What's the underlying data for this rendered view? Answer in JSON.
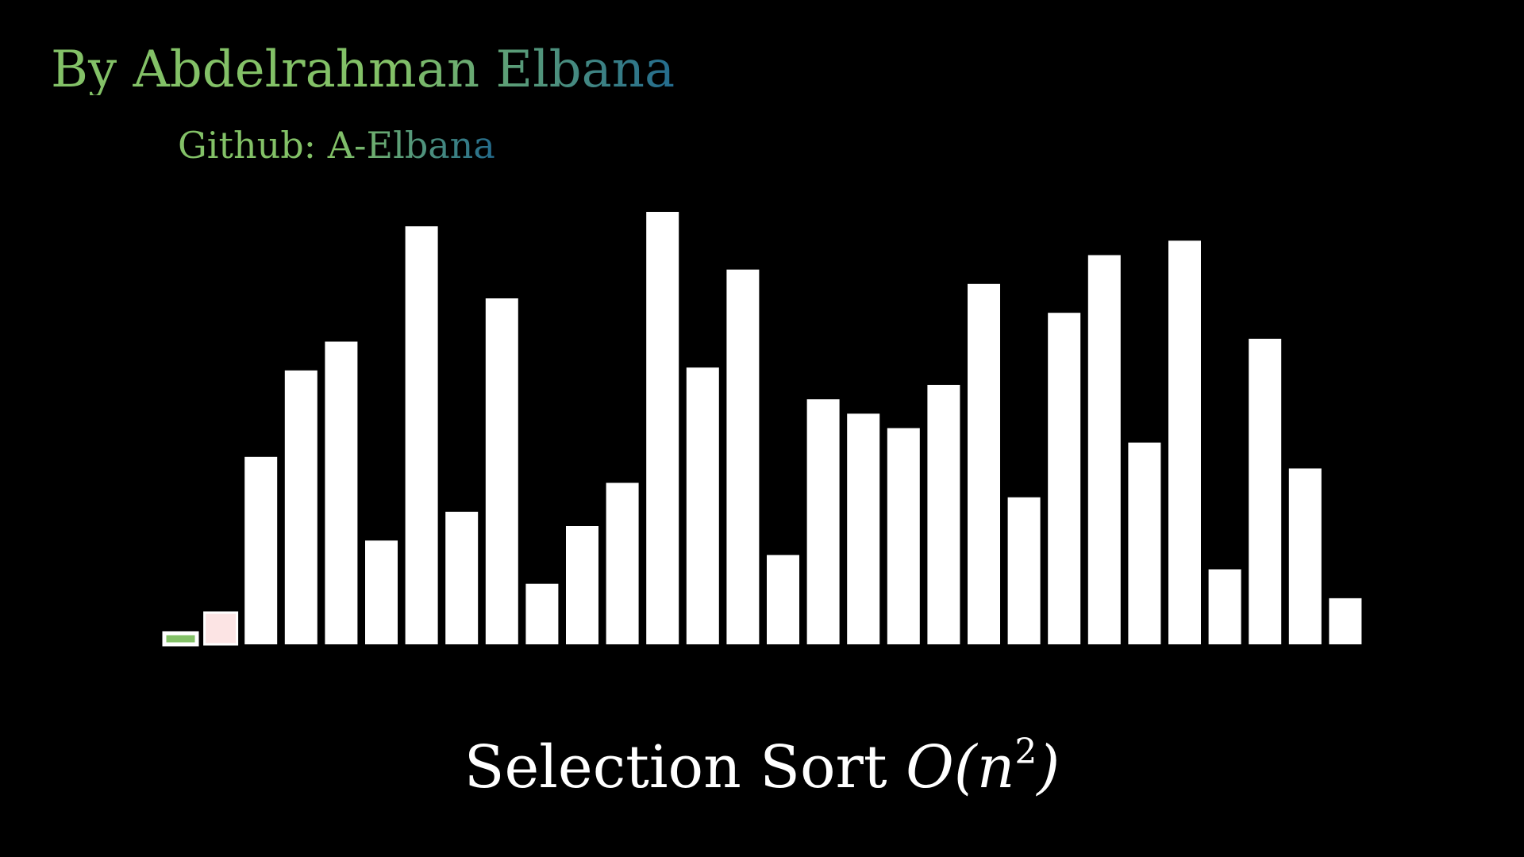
{
  "header": {
    "author": "By Abdelrahman Elbana",
    "github": "Github:  A-Elbana"
  },
  "footer": {
    "title_text": "Selection Sort",
    "complexity_open": "O(n",
    "complexity_exp": "2",
    "complexity_close": ")"
  },
  "chart_data": {
    "type": "bar",
    "values": [
      1,
      22,
      130,
      190,
      210,
      72,
      290,
      92,
      240,
      42,
      82,
      112,
      300,
      192,
      260,
      62,
      170,
      160,
      150,
      180,
      250,
      102,
      230,
      270,
      140,
      280,
      52,
      212,
      122,
      32
    ],
    "bar_styles": [
      "sorted",
      "current-min",
      "normal",
      "normal",
      "normal",
      "normal",
      "normal",
      "normal",
      "normal",
      "normal",
      "normal",
      "normal",
      "normal",
      "normal",
      "normal",
      "normal",
      "normal",
      "normal",
      "normal",
      "normal",
      "normal",
      "normal",
      "normal",
      "normal",
      "normal",
      "normal",
      "normal",
      "normal",
      "normal",
      "normal"
    ],
    "colors": {
      "normal": "#ffffff",
      "sorted_fill": "#83c167",
      "current_min_fill": "#fce4e4",
      "background": "#000000"
    },
    "grid": false,
    "legend": "none"
  }
}
